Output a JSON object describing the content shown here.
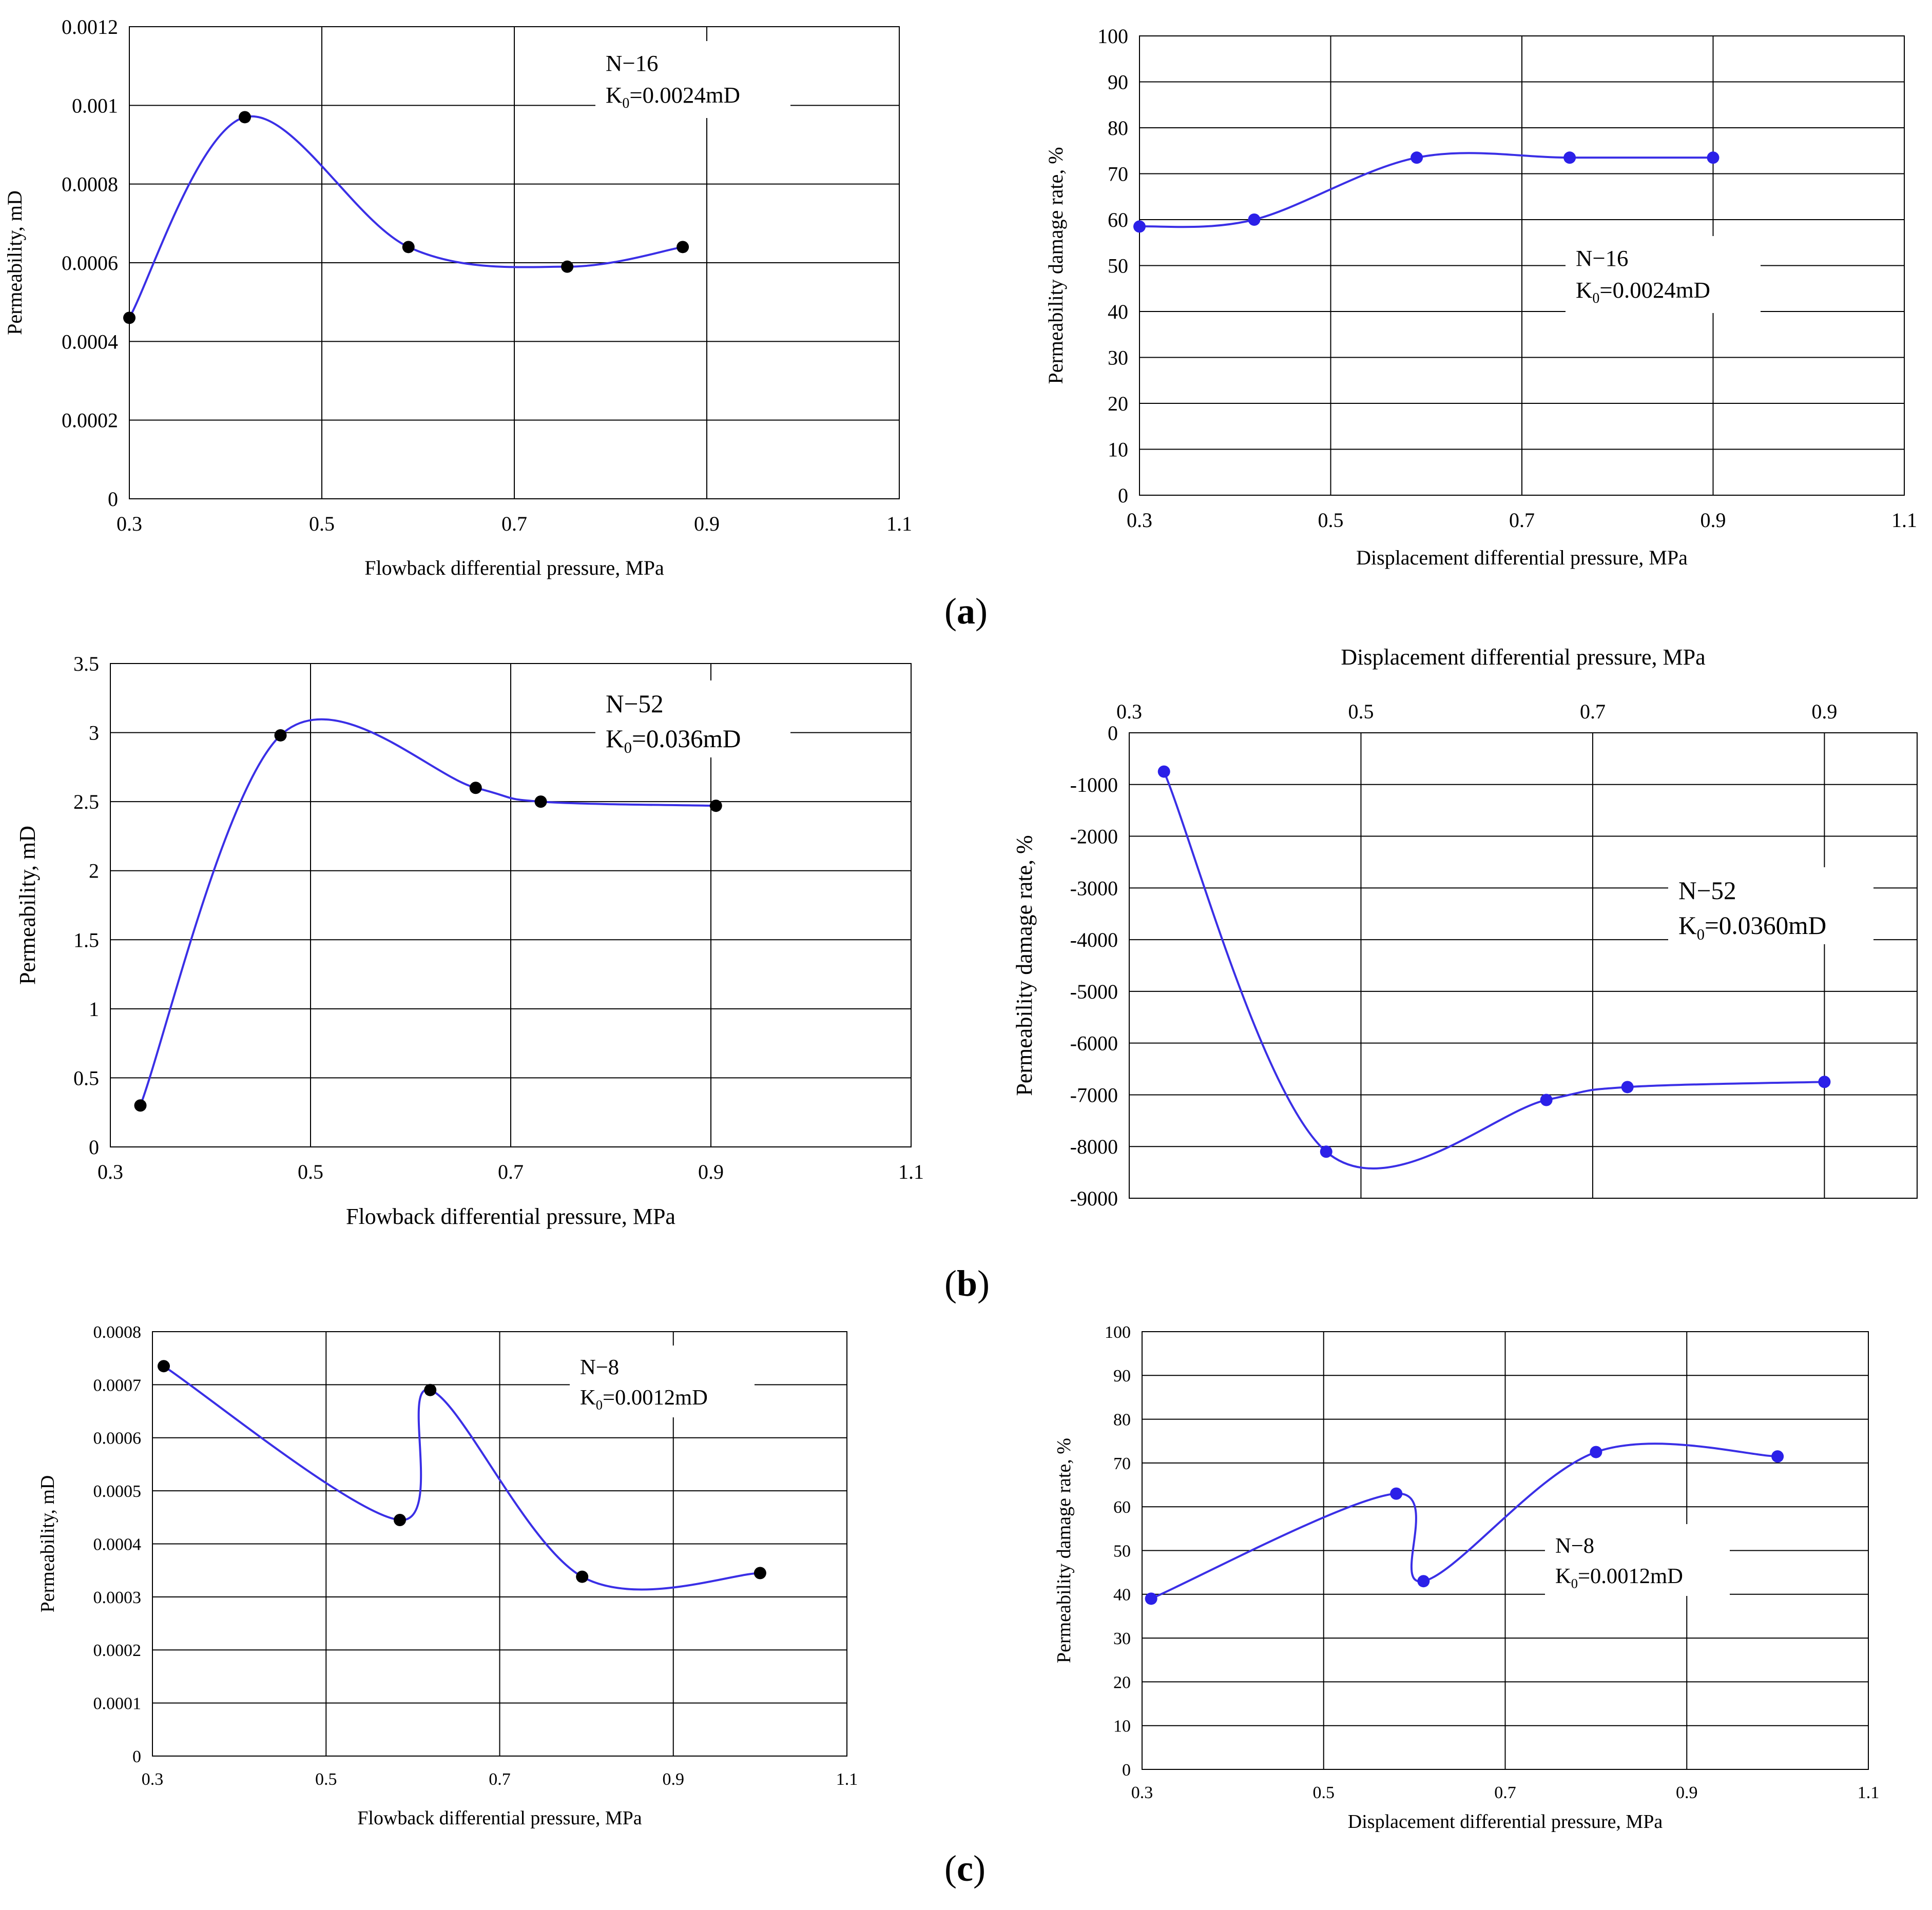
{
  "panel_labels": {
    "a": "a",
    "b": "b",
    "c": "c"
  },
  "colors": {
    "curve": "#3a2fe6",
    "point_black": "#000000",
    "point_blue": "#2b20e8",
    "grid": "#000000"
  },
  "chart_data": [
    {
      "id": "a-left",
      "type": "line",
      "xlabel": "Flowback differential pressure, MPa",
      "ylabel": "Permeability, mD",
      "xlim": [
        0.3,
        1.1
      ],
      "ylim": [
        0,
        0.0012
      ],
      "xticks": [
        "0.3",
        "0.5",
        "0.7",
        "0.9",
        "1.1"
      ],
      "yticks": [
        "0",
        "0.0002",
        "0.0004",
        "0.0006",
        "0.0008",
        "0.001",
        "0.0012"
      ],
      "y_reversed": false,
      "x_axis_position": "bottom",
      "grid": true,
      "annotation": {
        "line1": "N−16",
        "k_prefix": "K",
        "k_sub": "0",
        "k_value": "=0.0024mD"
      },
      "series": [
        {
          "name": "N-16",
          "marker_color": "black",
          "x": [
            0.3,
            0.42,
            0.59,
            0.755,
            0.875
          ],
          "y": [
            0.00046,
            0.00097,
            0.00064,
            0.00059,
            0.00064
          ]
        }
      ]
    },
    {
      "id": "a-right",
      "type": "line",
      "xlabel": "Displacement differential pressure, MPa",
      "ylabel": "Permeability damage rate, %",
      "xlim": [
        0.3,
        1.1
      ],
      "ylim": [
        0,
        100
      ],
      "xticks": [
        "0.3",
        "0.5",
        "0.7",
        "0.9",
        "1.1"
      ],
      "yticks": [
        "0",
        "10",
        "20",
        "30",
        "40",
        "50",
        "60",
        "70",
        "80",
        "90",
        "100"
      ],
      "y_reversed": false,
      "x_axis_position": "bottom",
      "grid": true,
      "annotation": {
        "line1": "N−16",
        "k_prefix": "K",
        "k_sub": "0",
        "k_value": "=0.0024mD"
      },
      "series": [
        {
          "name": "N-16",
          "marker_color": "blue",
          "x": [
            0.3,
            0.42,
            0.59,
            0.75,
            0.9
          ],
          "y": [
            58.5,
            60,
            73.5,
            73.5,
            73.5
          ]
        }
      ]
    },
    {
      "id": "b-left",
      "type": "line",
      "xlabel": "Flowback differential pressure, MPa",
      "ylabel": "Permeability, mD",
      "xlim": [
        0.3,
        1.1
      ],
      "ylim": [
        0,
        3.5
      ],
      "xticks": [
        "0.3",
        "0.5",
        "0.7",
        "0.9",
        "1.1"
      ],
      "yticks": [
        "0",
        "0.5",
        "1",
        "1.5",
        "2",
        "2.5",
        "3",
        "3.5"
      ],
      "y_reversed": false,
      "x_axis_position": "bottom",
      "grid": true,
      "annotation": {
        "line1": "N−52",
        "k_prefix": "K",
        "k_sub": "0",
        "k_value": "=0.036mD"
      },
      "series": [
        {
          "name": "N-52",
          "marker_color": "black",
          "x": [
            0.33,
            0.47,
            0.665,
            0.73,
            0.905
          ],
          "y": [
            0.3,
            2.98,
            2.6,
            2.5,
            2.47
          ]
        }
      ]
    },
    {
      "id": "b-right",
      "type": "line",
      "xlabel": "Displacement differential pressure, MPa",
      "ylabel": "Permeability damage rate, %",
      "xlim": [
        0.3,
        0.98
      ],
      "ylim": [
        -9000,
        0
      ],
      "xticks": [
        "0.3",
        "0.5",
        "0.7",
        "0.9"
      ],
      "xtick_values": [
        0.3,
        0.5,
        0.7,
        0.9
      ],
      "yticks": [
        "0",
        "-1000",
        "-2000",
        "-3000",
        "-4000",
        "-5000",
        "-6000",
        "-7000",
        "-8000",
        "-9000"
      ],
      "y_reversed": true,
      "x_axis_position": "top",
      "grid": true,
      "annotation": {
        "line1": "N−52",
        "k_prefix": "K",
        "k_sub": "0",
        "k_value": "=0.0360mD"
      },
      "series": [
        {
          "name": "N-52",
          "marker_color": "blue",
          "x": [
            0.33,
            0.47,
            0.66,
            0.73,
            0.9
          ],
          "y": [
            -750,
            -8100,
            -7100,
            -6850,
            -6750
          ]
        }
      ]
    },
    {
      "id": "c-left",
      "type": "line",
      "xlabel": "Flowback differential pressure, MPa",
      "ylabel": "Permeability, mD",
      "xlim": [
        0.3,
        1.1
      ],
      "ylim": [
        0,
        0.0008
      ],
      "xticks": [
        "0.3",
        "0.5",
        "0.7",
        "0.9",
        "1.1"
      ],
      "yticks": [
        "0",
        "0.0001",
        "0.0002",
        "0.0003",
        "0.0004",
        "0.0005",
        "0.0006",
        "0.0007",
        "0.0008"
      ],
      "y_reversed": false,
      "x_axis_position": "bottom",
      "grid": true,
      "annotation": {
        "line1": "N−8",
        "k_prefix": "K",
        "k_sub": "0",
        "k_value": "=0.0012mD"
      },
      "series": [
        {
          "name": "N-8",
          "marker_color": "black",
          "x": [
            0.313,
            0.585,
            0.62,
            0.795,
            1.0
          ],
          "y": [
            0.000735,
            0.000445,
            0.00069,
            0.000338,
            0.000345
          ]
        }
      ]
    },
    {
      "id": "c-right",
      "type": "line",
      "xlabel": "Displacement differential pressure, MPa",
      "ylabel": "Permeability damage rate, %",
      "xlim": [
        0.3,
        1.1
      ],
      "ylim": [
        0,
        100
      ],
      "xticks": [
        "0.3",
        "0.5",
        "0.7",
        "0.9",
        "1.1"
      ],
      "yticks": [
        "0",
        "10",
        "20",
        "30",
        "40",
        "50",
        "60",
        "70",
        "80",
        "90",
        "100"
      ],
      "y_reversed": false,
      "x_axis_position": "bottom",
      "grid": true,
      "annotation": {
        "line1": "N−8",
        "k_prefix": "K",
        "k_sub": "0",
        "k_value": "=0.0012mD"
      },
      "series": [
        {
          "name": "N-8",
          "marker_color": "blue",
          "x": [
            0.31,
            0.58,
            0.61,
            0.8,
            1.0
          ],
          "y": [
            39,
            63,
            43,
            72.5,
            71.5
          ]
        }
      ]
    }
  ]
}
